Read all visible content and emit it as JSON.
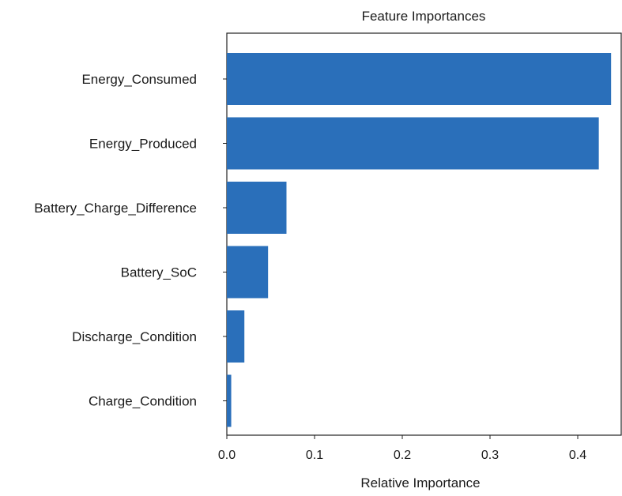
{
  "chart_data": {
    "type": "bar",
    "orientation": "horizontal",
    "title": "Feature Importances",
    "xlabel": "Relative Importance",
    "ylabel": "",
    "xlim": [
      0,
      0.44
    ],
    "xticks": [
      "0.0",
      "0.1",
      "0.2",
      "0.3",
      "0.4"
    ],
    "categories": [
      "Energy_Consumed",
      "Energy_Produced",
      "Battery_Charge_Difference",
      "Battery_SoC",
      "Discharge_Condition",
      "Charge_Condition"
    ],
    "values": [
      0.438,
      0.424,
      0.068,
      0.047,
      0.02,
      0.005
    ],
    "bar_color": "#2a6fba",
    "grid": false,
    "legend": false
  }
}
